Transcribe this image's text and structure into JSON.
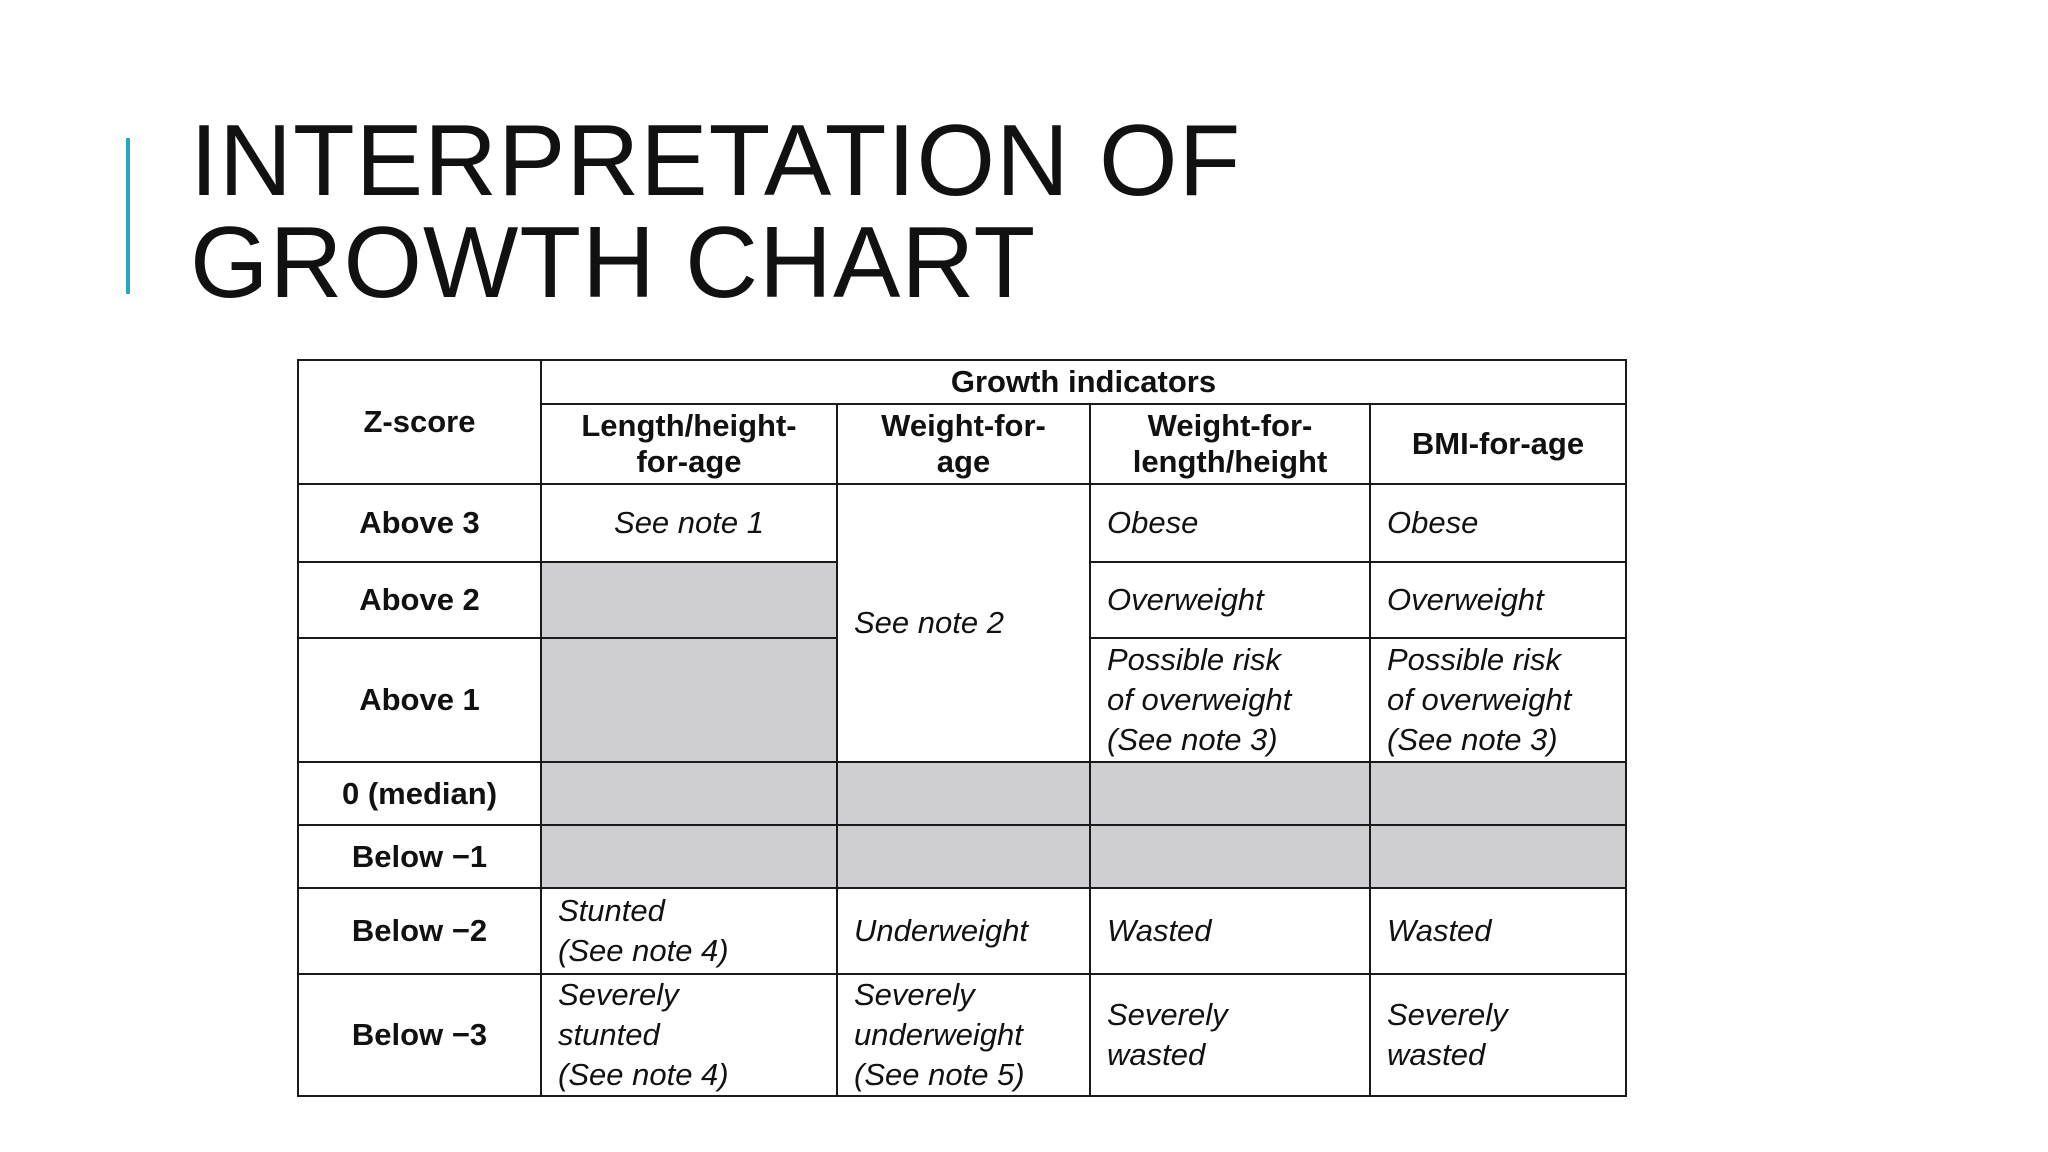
{
  "slide": {
    "title_line1": "INTERPRETATION OF",
    "title_line2": "GROWTH CHART",
    "accent_color": "#2aa3c9"
  },
  "table": {
    "zscore_header": "Z-score",
    "indicators_header": "Growth indicators",
    "columns": [
      [
        "Length/height-",
        "for-age"
      ],
      [
        "Weight-for-",
        "age"
      ],
      [
        "Weight-for-",
        "length/height"
      ],
      [
        "BMI-for-age"
      ]
    ],
    "rows": {
      "above3": {
        "label": "Above 3",
        "length_height": "See note 1",
        "weight_length": "Obese",
        "bmi": "Obese"
      },
      "above2": {
        "label": "Above 2",
        "weight_length": "Overweight",
        "bmi": "Overweight"
      },
      "above1": {
        "label": "Above 1",
        "weight_length": [
          "Possible risk",
          "of overweight",
          "(See note 3)"
        ],
        "bmi": [
          "Possible risk",
          "of overweight",
          "(See note 3)"
        ]
      },
      "median": {
        "label": "0 (median)"
      },
      "below1": {
        "label": "Below −1"
      },
      "below2": {
        "label": "Below −2",
        "length_height": [
          "Stunted",
          "(See note 4)"
        ],
        "weight_age": "Underweight",
        "weight_length": "Wasted",
        "bmi": "Wasted"
      },
      "below3": {
        "label": "Below −3",
        "length_height": [
          "Severely",
          "stunted",
          "(See note 4)"
        ],
        "weight_age": [
          "Severely",
          "underweight",
          "(See note 5)"
        ],
        "weight_length": [
          "Severely",
          "wasted"
        ],
        "bmi": [
          "Severely",
          "wasted"
        ]
      }
    },
    "weight_age_merged": "See note 2",
    "shade_color": "#cfcfd1"
  }
}
